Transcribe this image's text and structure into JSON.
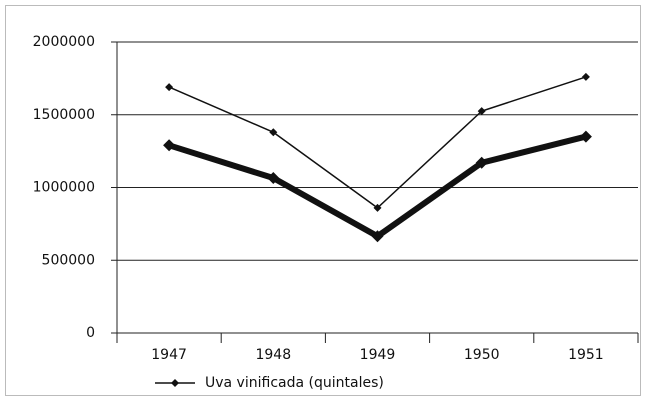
{
  "chart_data": {
    "type": "line",
    "categories": [
      "1947",
      "1948",
      "1949",
      "1950",
      "1951"
    ],
    "series": [
      {
        "name": "Uva vinificada (quintales)",
        "color": "#111111",
        "width": 1.5,
        "values": [
          1690000,
          1380000,
          860000,
          1525000,
          1760000
        ]
      },
      {
        "color": "#111111",
        "width": 6,
        "values": [
          1290000,
          1065000,
          665000,
          1170000,
          1350000
        ]
      }
    ],
    "ylim": [
      0,
      2000000
    ],
    "yticks": [
      0,
      500000,
      1000000,
      1500000,
      2000000
    ],
    "grid": true,
    "legend": "bottom"
  }
}
